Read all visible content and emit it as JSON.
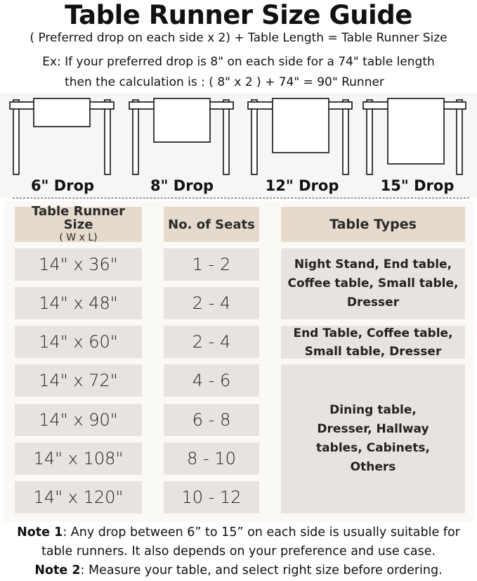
{
  "title": "Table Runner Size Guide",
  "formula": "( Preferred drop on each side x 2) + Table Length = Table Runner Size",
  "example_line1": "Ex: If your preferred drop is 8\" on each side for a 74\" table length",
  "example_line2": "then the calculation is : ( 8\" x 2 ) + 74\" = 90\" Runner",
  "drops": [
    {
      "label": "6\" Drop"
    },
    {
      "label": "8\" Drop"
    },
    {
      "label": "12\" Drop"
    },
    {
      "label": "15\" Drop"
    }
  ],
  "table": {
    "headers": {
      "size": "Table Runner Size",
      "size_sub": "( W x L)",
      "seats": "No. of Seats",
      "types": "Table Types"
    },
    "rows": [
      {
        "size": "14\" x 36\"",
        "seats": "1 - 2"
      },
      {
        "size": "14\" x 48\"",
        "seats": "2 - 4"
      },
      {
        "size": "14\" x 60\"",
        "seats": "2 - 4"
      },
      {
        "size": "14\" x 72\"",
        "seats": "4 - 6"
      },
      {
        "size": "14\" x 90\"",
        "seats": "6 - 8"
      },
      {
        "size": "14\" x 108\"",
        "seats": "8 - 10"
      },
      {
        "size": "14\" x 120\"",
        "seats": "10 - 12"
      }
    ],
    "types": [
      "Night Stand, End table, Coffee table, Small table, Dresser",
      "End Table, Coffee table, Small table, Dresser",
      "Dining table, Dresser, Hallway tables, Cabinets, Others"
    ]
  },
  "notes": {
    "note1_label": "Note 1",
    "note1_text": ": Any drop between 6” to 15” on each side is usually suitable for table runners. It also depends on your preference and use case.",
    "note2_label": "Note 2",
    "note2_text": ": Measure your table, and select right size before ordering."
  },
  "colors": {
    "header": "#e5dacb",
    "cell": "#e9e3df"
  }
}
